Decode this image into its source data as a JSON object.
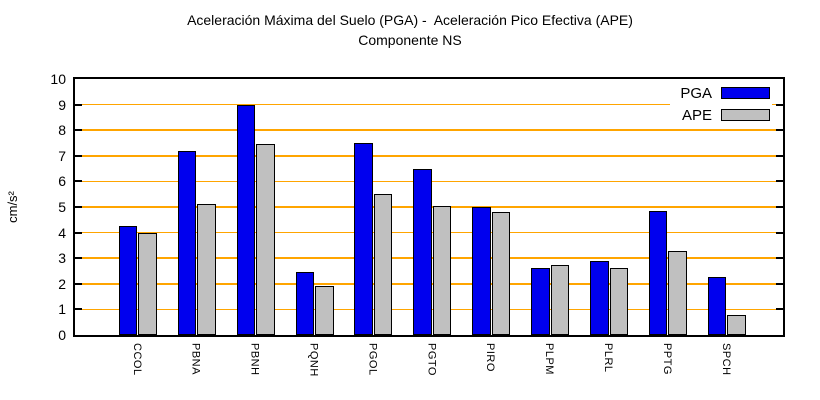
{
  "chart_data": {
    "type": "bar",
    "title": "Aceleración Máxima del Suelo (PGA) -  Aceleración Pico Efectiva (APE)",
    "subtitle": "Componente NS",
    "ylabel": "cm/s²",
    "ylim": [
      0,
      10
    ],
    "yticks": [
      0,
      1,
      2,
      3,
      4,
      5,
      6,
      7,
      8,
      9,
      10
    ],
    "grid": "horizontal",
    "grid_color": "#ffa500",
    "legend_position": "top-right-inside",
    "categories": [
      "CCOL",
      "PBNA",
      "PBNH",
      "PQNH",
      "PGOL",
      "PGTO",
      "PIRO",
      "PLPM",
      "PLRL",
      "PPTG",
      "SPCH"
    ],
    "series": [
      {
        "name": "PGA",
        "color": "#0000ee",
        "values": [
          4.25,
          7.2,
          9.0,
          2.45,
          7.5,
          6.5,
          5.0,
          2.6,
          2.9,
          4.85,
          2.25
        ]
      },
      {
        "name": "APE",
        "color": "#c0c0c0",
        "values": [
          4.0,
          5.1,
          7.45,
          1.9,
          5.5,
          5.05,
          4.8,
          2.75,
          2.6,
          3.3,
          0.8
        ]
      }
    ]
  }
}
